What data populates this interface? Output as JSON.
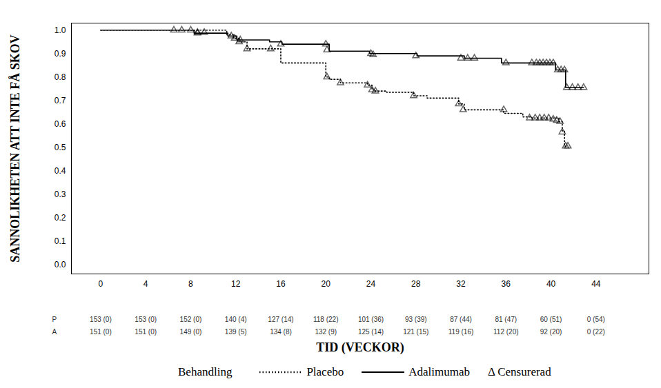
{
  "chart_data": {
    "type": "line",
    "x_label": "TID (VECKOR)",
    "y_label": "SANNOLIKHETEN ATT INTE FÅ SKOV",
    "xlim": [
      -2.6,
      48.7
    ],
    "xticks": [
      0,
      4,
      8,
      12,
      16,
      20,
      24,
      28,
      32,
      36,
      40,
      44
    ],
    "ylim": [
      -0.04,
      1.03
    ],
    "yticks": [
      {
        "value": 0,
        "label": "0.0"
      },
      0.1,
      0.2,
      0.3,
      0.4,
      0.5,
      0.6,
      0.7,
      0.8,
      0.9,
      {
        "value": 1,
        "label": "1.0"
      }
    ],
    "grid": false,
    "legend": "bottom",
    "legend_title": "Behandling",
    "marker": "triangle",
    "censored_label": "Δ Censurerad",
    "series": [
      {
        "name": "Placebo",
        "color": "#000000",
        "line_style": "dotted",
        "x": [
          0,
          11.2,
          11.8,
          12.3,
          13.0,
          16.0,
          20.0,
          20.3,
          21.3,
          23.7,
          24.1,
          24.4,
          25.4,
          27.8,
          29.0,
          31.8,
          32.3,
          35.8,
          37.5,
          38.3,
          40.7,
          41.0,
          41.2,
          41.5
        ],
        "values": [
          1.0,
          0.98,
          0.965,
          0.95,
          0.92,
          0.86,
          0.8,
          0.79,
          0.775,
          0.765,
          0.745,
          0.74,
          0.735,
          0.72,
          0.71,
          0.685,
          0.66,
          0.645,
          0.63,
          0.625,
          0.61,
          0.57,
          0.505,
          0.505
        ],
        "censored_x": [
          8.6,
          9.2,
          11.9,
          12.3,
          13.0,
          15.1,
          20.1,
          21.3,
          23.7,
          24.1,
          24.4,
          27.8,
          31.8,
          32.2,
          35.8,
          38.1,
          38.6,
          39.0,
          39.4,
          39.8,
          40.2,
          40.5,
          40.8,
          41.0,
          41.3,
          41.5
        ],
        "censored_y": [
          0.99,
          0.99,
          0.965,
          0.95,
          0.92,
          0.92,
          0.8,
          0.775,
          0.765,
          0.745,
          0.74,
          0.72,
          0.685,
          0.66,
          0.66,
          0.625,
          0.625,
          0.625,
          0.625,
          0.625,
          0.62,
          0.615,
          0.61,
          0.565,
          0.505,
          0.505
        ]
      },
      {
        "name": "Adalimumab",
        "color": "#000000",
        "line_style": "solid",
        "x": [
          0,
          8.3,
          11.3,
          12.1,
          15.0,
          16.1,
          20.3,
          23.9,
          28.1,
          32.3,
          35.6,
          40.4,
          41.3,
          42.9
        ],
        "values": [
          1.0,
          0.987,
          0.975,
          0.958,
          0.95,
          0.94,
          0.91,
          0.9,
          0.89,
          0.88,
          0.86,
          0.83,
          0.755,
          0.755
        ],
        "censored_x": [
          6.5,
          7.2,
          8.0,
          8.6,
          11.6,
          12.4,
          16.0,
          20.0,
          20.1,
          24.0,
          24.2,
          28.0,
          32.0,
          32.6,
          33.2,
          36.0,
          38.3,
          38.7,
          39.0,
          39.3,
          39.6,
          39.9,
          40.2,
          40.6,
          40.9,
          41.2,
          41.4,
          41.9,
          42.4,
          42.9
        ],
        "censored_y": [
          1.0,
          1.0,
          1.0,
          0.987,
          0.975,
          0.958,
          0.94,
          0.94,
          0.915,
          0.9,
          0.895,
          0.89,
          0.88,
          0.88,
          0.88,
          0.86,
          0.86,
          0.86,
          0.86,
          0.86,
          0.86,
          0.86,
          0.86,
          0.83,
          0.83,
          0.83,
          0.755,
          0.755,
          0.755,
          0.755
        ]
      }
    ],
    "risk_table": {
      "x": [
        0,
        4,
        8,
        12,
        16,
        20,
        24,
        28,
        32,
        36,
        40,
        44
      ],
      "rows": [
        {
          "label": "P",
          "values": [
            "153 (0)",
            "153 (0)",
            "152 (0)",
            "140 (4)",
            "127 (14)",
            "118 (22)",
            "101 (36)",
            "93 (39)",
            "87 (44)",
            "81 (47)",
            "60 (51)",
            "0 (54)"
          ]
        },
        {
          "label": "A",
          "values": [
            "151 (0)",
            "151 (0)",
            "149 (0)",
            "139 (5)",
            "134 (8)",
            "132 (9)",
            "125 (14)",
            "121 (15)",
            "119 (16)",
            "112 (20)",
            "92 (20)",
            "0 (22)"
          ]
        }
      ]
    }
  }
}
